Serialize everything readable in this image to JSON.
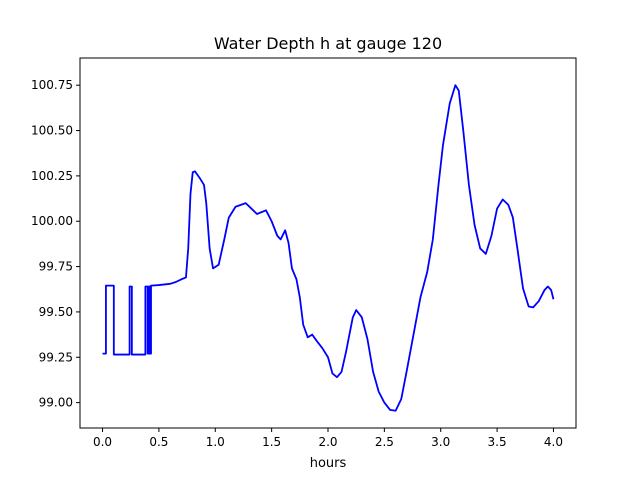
{
  "chart_data": {
    "type": "line",
    "title": "Water Depth h at gauge 120",
    "xlabel": "hours",
    "ylabel": "",
    "xlim": [
      -0.2,
      4.2
    ],
    "ylim": [
      98.86,
      100.9
    ],
    "xticks": [
      0.0,
      0.5,
      1.0,
      1.5,
      2.0,
      2.5,
      3.0,
      3.5,
      4.0
    ],
    "xtick_labels": [
      "0.0",
      "0.5",
      "1.0",
      "1.5",
      "2.0",
      "2.5",
      "3.0",
      "3.5",
      "4.0"
    ],
    "yticks": [
      99.0,
      99.25,
      99.5,
      99.75,
      100.0,
      100.25,
      100.5,
      100.75
    ],
    "ytick_labels": [
      "99.00",
      "99.25",
      "99.50",
      "99.75",
      "100.00",
      "100.25",
      "100.50",
      "100.75"
    ],
    "grid": false,
    "legend": false,
    "series": [
      {
        "color": "#0000ff",
        "points": [
          [
            0.0,
            99.27
          ],
          [
            0.03,
            99.27
          ],
          [
            0.03,
            99.645
          ],
          [
            0.1,
            99.645
          ],
          [
            0.1,
            99.265
          ],
          [
            0.24,
            99.265
          ],
          [
            0.24,
            99.64
          ],
          [
            0.26,
            99.64
          ],
          [
            0.26,
            99.265
          ],
          [
            0.38,
            99.265
          ],
          [
            0.38,
            99.64
          ],
          [
            0.4,
            99.64
          ],
          [
            0.4,
            99.27
          ],
          [
            0.41,
            99.27
          ],
          [
            0.41,
            99.64
          ],
          [
            0.42,
            99.64
          ],
          [
            0.42,
            99.27
          ],
          [
            0.43,
            99.27
          ],
          [
            0.43,
            99.645
          ],
          [
            0.5,
            99.648
          ],
          [
            0.6,
            99.655
          ],
          [
            0.65,
            99.665
          ],
          [
            0.7,
            99.68
          ],
          [
            0.74,
            99.69
          ],
          [
            0.76,
            99.85
          ],
          [
            0.78,
            100.15
          ],
          [
            0.8,
            100.27
          ],
          [
            0.82,
            100.275
          ],
          [
            0.86,
            100.24
          ],
          [
            0.9,
            100.2
          ],
          [
            0.92,
            100.1
          ],
          [
            0.95,
            99.85
          ],
          [
            0.98,
            99.74
          ],
          [
            1.03,
            99.76
          ],
          [
            1.08,
            99.9
          ],
          [
            1.12,
            100.02
          ],
          [
            1.18,
            100.08
          ],
          [
            1.27,
            100.1
          ],
          [
            1.32,
            100.07
          ],
          [
            1.37,
            100.04
          ],
          [
            1.45,
            100.06
          ],
          [
            1.5,
            100.0
          ],
          [
            1.55,
            99.92
          ],
          [
            1.58,
            99.9
          ],
          [
            1.62,
            99.95
          ],
          [
            1.65,
            99.88
          ],
          [
            1.68,
            99.74
          ],
          [
            1.72,
            99.68
          ],
          [
            1.75,
            99.58
          ],
          [
            1.78,
            99.43
          ],
          [
            1.82,
            99.36
          ],
          [
            1.86,
            99.375
          ],
          [
            1.9,
            99.34
          ],
          [
            1.95,
            99.3
          ],
          [
            2.0,
            99.25
          ],
          [
            2.04,
            99.16
          ],
          [
            2.08,
            99.14
          ],
          [
            2.12,
            99.17
          ],
          [
            2.16,
            99.28
          ],
          [
            2.22,
            99.47
          ],
          [
            2.25,
            99.51
          ],
          [
            2.3,
            99.47
          ],
          [
            2.35,
            99.35
          ],
          [
            2.4,
            99.17
          ],
          [
            2.45,
            99.06
          ],
          [
            2.5,
            99.0
          ],
          [
            2.55,
            98.96
          ],
          [
            2.6,
            98.955
          ],
          [
            2.65,
            99.02
          ],
          [
            2.7,
            99.18
          ],
          [
            2.76,
            99.38
          ],
          [
            2.82,
            99.58
          ],
          [
            2.88,
            99.72
          ],
          [
            2.93,
            99.9
          ],
          [
            2.98,
            100.2
          ],
          [
            3.02,
            100.42
          ],
          [
            3.08,
            100.65
          ],
          [
            3.13,
            100.75
          ],
          [
            3.16,
            100.72
          ],
          [
            3.2,
            100.5
          ],
          [
            3.25,
            100.2
          ],
          [
            3.3,
            99.98
          ],
          [
            3.35,
            99.85
          ],
          [
            3.4,
            99.82
          ],
          [
            3.45,
            99.92
          ],
          [
            3.5,
            100.07
          ],
          [
            3.55,
            100.12
          ],
          [
            3.6,
            100.09
          ],
          [
            3.64,
            100.02
          ],
          [
            3.68,
            99.85
          ],
          [
            3.73,
            99.63
          ],
          [
            3.78,
            99.53
          ],
          [
            3.82,
            99.525
          ],
          [
            3.87,
            99.56
          ],
          [
            3.92,
            99.62
          ],
          [
            3.95,
            99.64
          ],
          [
            3.98,
            99.62
          ],
          [
            4.0,
            99.57
          ]
        ]
      }
    ]
  }
}
